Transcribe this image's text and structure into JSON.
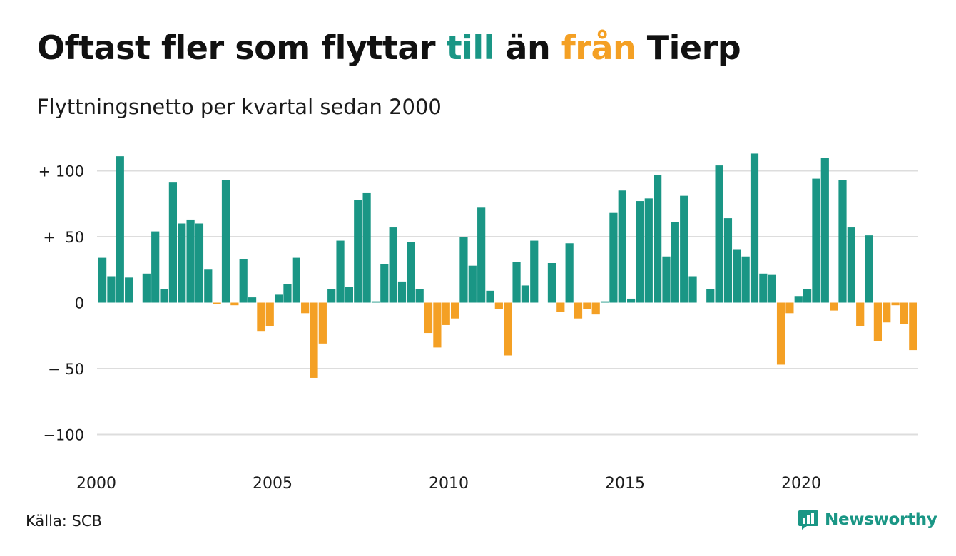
{
  "title": {
    "part1": "Oftast fler som flyttar ",
    "till": "till",
    "part2": " än ",
    "fran": "från",
    "part3": " Tierp"
  },
  "subtitle": "Flyttningsnetto per kvartal sedan 2000",
  "source": "Källa: SCB",
  "logo_text": "Newsworthy",
  "colors": {
    "positive": "#1a9685",
    "negative": "#f4a024",
    "grid": "#dddddd",
    "text": "#1a1a1a"
  },
  "chart_data": {
    "type": "bar",
    "x_start": "2000 Q1",
    "x_ticks": [
      "2000",
      "2005",
      "2010",
      "2015",
      "2020"
    ],
    "y_ticks": [
      {
        "value": 100,
        "label": "+ 100"
      },
      {
        "value": 50,
        "label": "+  50"
      },
      {
        "value": 0,
        "label": "0"
      },
      {
        "value": -50,
        "label": "− 50"
      },
      {
        "value": -100,
        "label": "−100"
      }
    ],
    "ylim": [
      -100,
      113
    ],
    "grid": true,
    "values": [
      34,
      20,
      111,
      19,
      0,
      22,
      54,
      10,
      91,
      60,
      63,
      60,
      25,
      -1,
      93,
      -2,
      33,
      4,
      -22,
      -18,
      6,
      14,
      34,
      -8,
      -57,
      -31,
      10,
      47,
      12,
      78,
      83,
      1,
      29,
      57,
      16,
      46,
      10,
      -23,
      -34,
      -17,
      -12,
      50,
      28,
      72,
      9,
      -5,
      -40,
      31,
      13,
      47,
      0,
      30,
      -7,
      45,
      -12,
      -5,
      -9,
      1,
      68,
      85,
      3,
      77,
      79,
      97,
      35,
      61,
      81,
      20,
      0,
      10,
      104,
      64,
      40,
      35,
      113,
      22,
      21,
      -47,
      -8,
      5,
      10,
      94,
      110,
      -6,
      93,
      57,
      -18,
      51,
      -29,
      -15,
      -2,
      -16,
      -36
    ]
  }
}
